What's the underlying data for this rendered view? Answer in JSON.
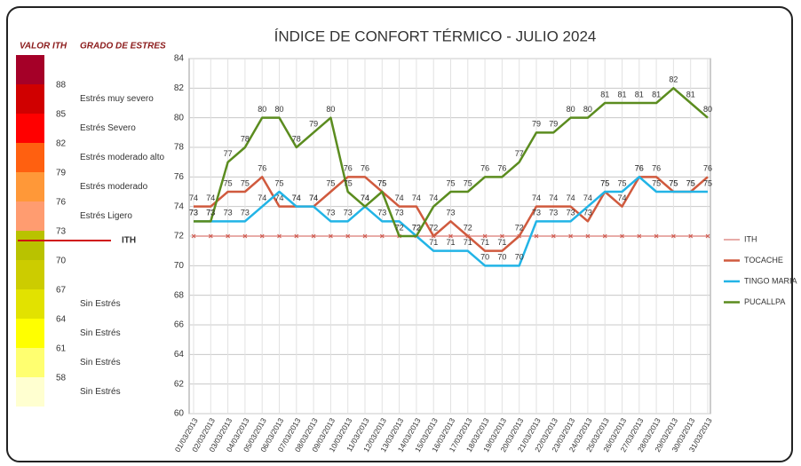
{
  "chart_data": {
    "type": "line",
    "title": "ÍNDICE DE CONFORT TÉRMICO - JULIO 2024",
    "categories": [
      "01/03/2013",
      "02/03/2013",
      "03/03/2013",
      "04/03/2013",
      "05/03/2013",
      "06/03/2013",
      "07/03/2013",
      "08/03/2013",
      "09/03/2013",
      "10/03/2013",
      "11/03/2013",
      "12/03/2013",
      "13/03/2013",
      "14/03/2013",
      "15/03/2013",
      "16/03/2013",
      "17/03/2013",
      "18/03/2013",
      "19/03/2013",
      "20/03/2013",
      "21/03/2013",
      "22/03/2013",
      "23/03/2013",
      "24/03/2013",
      "25/03/2013",
      "26/03/2013",
      "27/03/2013",
      "28/03/2013",
      "29/03/2013",
      "30/03/2013",
      "31/03/2013"
    ],
    "ylim": [
      60,
      84
    ],
    "yticks": [
      60,
      62,
      64,
      66,
      68,
      70,
      72,
      74,
      76,
      78,
      80,
      82,
      84
    ],
    "grid": true,
    "series": [
      {
        "name": "ITH",
        "color": "#d05a50",
        "width": 1,
        "marker": "x",
        "data_labels": false,
        "values": [
          72,
          72,
          72,
          72,
          72,
          72,
          72,
          72,
          72,
          72,
          72,
          72,
          72,
          72,
          72,
          72,
          72,
          72,
          72,
          72,
          72,
          72,
          72,
          72,
          72,
          72,
          72,
          72,
          72,
          72,
          72
        ]
      },
      {
        "name": "TOCACHE",
        "color": "#d05a3e",
        "width": 2.5,
        "data_labels": true,
        "values": [
          74,
          74,
          75,
          75,
          76,
          74,
          74,
          74,
          75,
          76,
          76,
          75,
          74,
          74,
          72,
          73,
          72,
          71,
          71,
          72,
          74,
          74,
          74,
          73,
          75,
          74,
          76,
          76,
          75,
          75,
          76
        ]
      },
      {
        "name": "TINGO MARIA",
        "color": "#22b4e6",
        "width": 2.5,
        "data_labels": true,
        "values": [
          73,
          73,
          73,
          73,
          74,
          75,
          74,
          74,
          73,
          73,
          74,
          73,
          73,
          72,
          71,
          71,
          71,
          70,
          70,
          70,
          73,
          73,
          73,
          74,
          75,
          75,
          76,
          75,
          75,
          75,
          75
        ]
      },
      {
        "name": "PUCALLPA",
        "color": "#5b8c1f",
        "width": 2.5,
        "data_labels": true,
        "values": [
          73,
          73,
          77,
          78,
          80,
          80,
          78,
          79,
          80,
          75,
          74,
          75,
          72,
          72,
          74,
          75,
          75,
          76,
          76,
          77,
          79,
          79,
          80,
          80,
          81,
          81,
          81,
          81,
          82,
          81,
          80
        ]
      }
    ]
  },
  "side_legend": {
    "headers": [
      "VALOR ITH",
      "GRADO DE ESTRES"
    ],
    "colors": [
      "#a50028",
      "#d00000",
      "#ff0000",
      "#ff6010",
      "#ff9838",
      "#ff9c70",
      "#b9c200",
      "#cccc00",
      "#e2e200",
      "#ffff00",
      "#ffff70",
      "#ffffd0"
    ],
    "scale": [
      88,
      85,
      82,
      79,
      76,
      73,
      70,
      67,
      64,
      61,
      58
    ],
    "levels": [
      "Estrés muy severo",
      "Estrés Severo",
      "Estrés moderado alto",
      "Estrés moderado",
      "Estrés Ligero",
      "Sin Estrés",
      "Sin Estrés",
      "Sin Estrés",
      "Sin Estrés"
    ],
    "ith_label": "ITH"
  }
}
